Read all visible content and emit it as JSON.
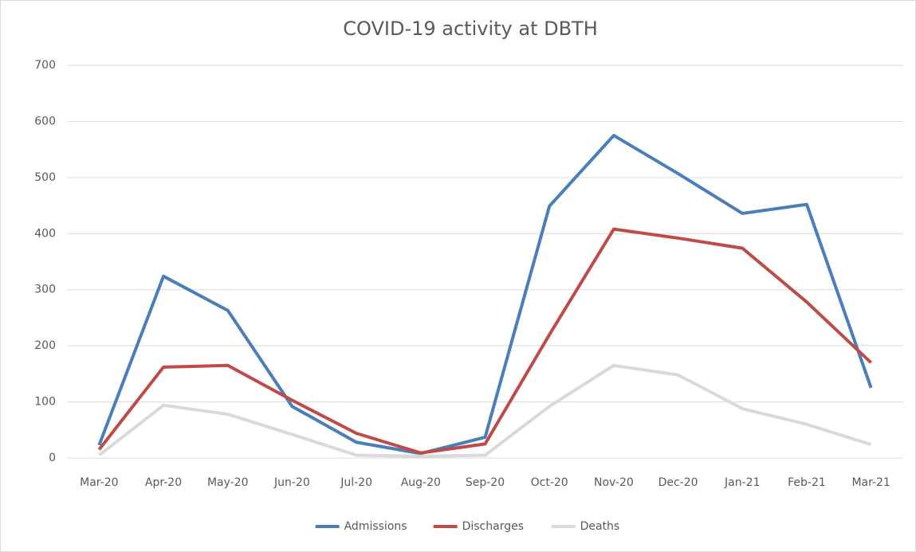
{
  "chart_data": {
    "type": "line",
    "title": "COVID-19 activity at DBTH",
    "categories": [
      "Mar-20",
      "Apr-20",
      "May-20",
      "Jun-20",
      "Jul-20",
      "Aug-20",
      "Sep-20",
      "Oct-20",
      "Nov-20",
      "Dec-20",
      "Jan-21",
      "Feb-21",
      "Mar-21"
    ],
    "series": [
      {
        "name": "Admissions",
        "color": "#4a7ebb",
        "values": [
          23,
          324,
          263,
          92,
          28,
          8,
          37,
          449,
          575,
          507,
          436,
          452,
          125
        ]
      },
      {
        "name": "Discharges",
        "color": "#be4b48",
        "values": [
          15,
          162,
          165,
          103,
          44,
          9,
          25,
          220,
          408,
          392,
          374,
          278,
          170
        ]
      },
      {
        "name": "Deaths",
        "color": "#d9d9d9",
        "values": [
          5,
          94,
          78,
          42,
          5,
          3,
          5,
          92,
          165,
          148,
          88,
          60,
          24
        ]
      }
    ],
    "ylim": [
      0,
      700
    ],
    "yticks": [
      0,
      100,
      200,
      300,
      400,
      500,
      600,
      700
    ],
    "grid": true,
    "legend": "bottom"
  }
}
